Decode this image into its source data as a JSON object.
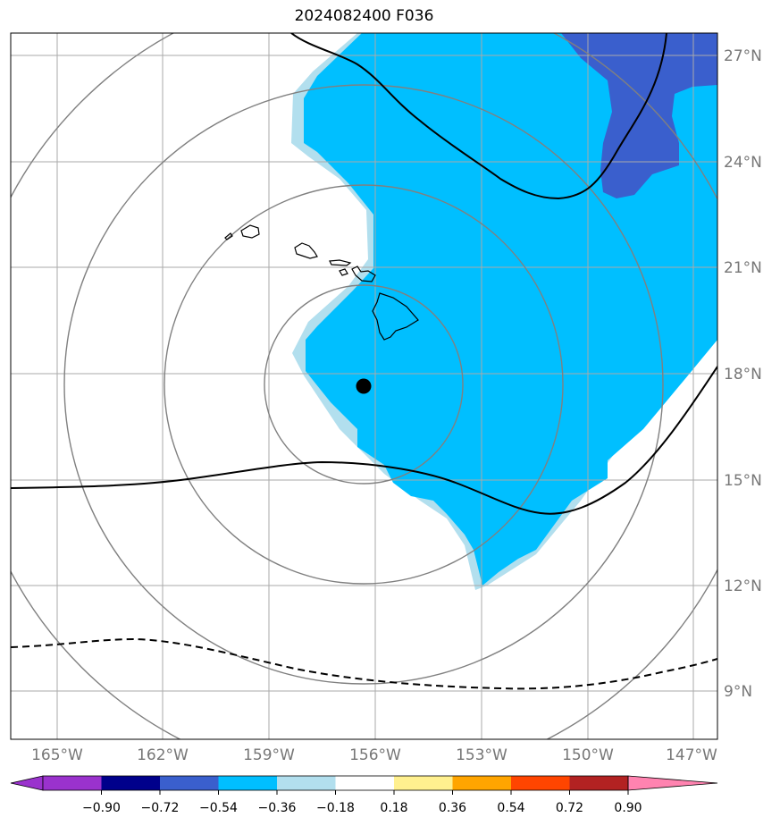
{
  "title": "2024082400 F036",
  "longitude_labels": [
    "165°W",
    "162°W",
    "159°W",
    "156°W",
    "153°W",
    "150°W",
    "147°W"
  ],
  "latitude_labels": [
    "27°N",
    "24°N",
    "21°N",
    "18°N",
    "15°N",
    "12°N",
    "9°N"
  ],
  "colorbar": {
    "tick_labels": [
      "−0.90",
      "−0.72",
      "−0.54",
      "−0.36",
      "−0.18",
      "0.18",
      "0.36",
      "0.54",
      "0.72",
      "0.90"
    ],
    "colors": [
      "#9a32cd",
      "#00008b",
      "#3a5fcd",
      "#00bfff",
      "#b2dfee",
      "#ffffff",
      "#fff08f",
      "#ffa500",
      "#ff4500",
      "#b22222",
      "#ff83b0"
    ]
  },
  "colors": {
    "field_light": "#b2dfee",
    "field_mid": "#00bfff",
    "field_dark": "#3a5fcd",
    "grid": "#aaaaaa",
    "rings": "#808080",
    "contour": "#000000"
  },
  "storm_center": {
    "lon": -156.3,
    "lat": 17.6
  }
}
